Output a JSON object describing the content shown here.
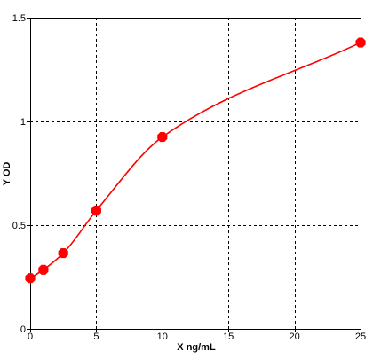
{
  "chart_data": {
    "type": "line",
    "title": "",
    "xlabel": "X ng/mL",
    "ylabel": "Y OD",
    "xlim": [
      0,
      25
    ],
    "ylim": [
      0,
      1.5
    ],
    "xticks": [
      0,
      5,
      10,
      15,
      20,
      25
    ],
    "yticks": [
      0,
      0.5,
      1,
      1.5
    ],
    "xtick_labels": [
      "0",
      "5",
      "10",
      "15",
      "20",
      "25"
    ],
    "ytick_labels": [
      "0",
      "0.5",
      "1",
      "1.5"
    ],
    "grid": true,
    "legend": "none",
    "series": [
      {
        "x": [
          0,
          1,
          2.5,
          5,
          10,
          25
        ],
        "values": [
          0.245,
          0.285,
          0.365,
          0.57,
          0.925,
          1.38
        ],
        "color": "#ff0000",
        "marker": "octagon",
        "curve": "smooth"
      }
    ]
  },
  "colors": {
    "series": "#ff0000",
    "grid": "#000000",
    "background": "#ffffff"
  }
}
